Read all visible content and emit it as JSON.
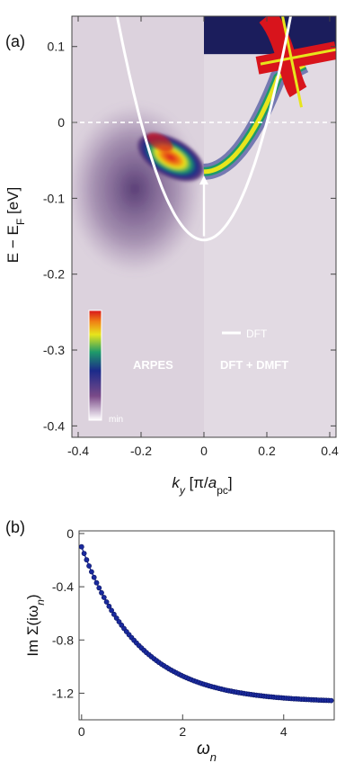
{
  "panel_a": {
    "label": "(a)",
    "region_left_label": "ARPES",
    "region_right_label": "DFT + DMFT",
    "legend_dft_label": "DFT",
    "colorbar_min_label": "min",
    "ylabel_main": "E − E",
    "ylabel_sub": "F",
    "ylabel_unit": " [eV]",
    "xlabel_k": "k",
    "xlabel_y": "y",
    "xlabel_mid": " [π/",
    "xlabel_a": "a",
    "xlabel_pc": "pc",
    "xlabel_end": "]",
    "colors": {
      "background": "#dcd2dd",
      "dft_curve": "#ffffff",
      "fermi_line": "#ffffff"
    }
  },
  "panel_b": {
    "label": "(b)",
    "ylabel_main": "Im Σ(iω",
    "ylabel_sub": "n",
    "ylabel_end": ")",
    "xlabel_main": "ω",
    "xlabel_sub": "n",
    "colors": {
      "marker": "#1a2a9e",
      "line": "#1a2a9e"
    }
  },
  "chart_data": [
    {
      "type": "heatmap",
      "x_axis": {
        "range": [
          -0.42,
          0.42
        ],
        "ticks": [
          -0.4,
          -0.2,
          0,
          0.2,
          0.4
        ],
        "tick_labels": [
          "-0.4",
          "-0.2",
          "0",
          "0.2",
          "0.4"
        ]
      },
      "y_axis": {
        "range": [
          -0.415,
          0.14
        ],
        "ticks": [
          0.1,
          0,
          -0.1,
          -0.2,
          -0.3,
          -0.4
        ],
        "tick_labels": [
          "0.1",
          "0",
          "-0.1",
          "-0.2",
          "-0.3",
          "-0.4"
        ]
      },
      "fermi_level": 0,
      "dft_band": {
        "k_min": 0,
        "energy_min": -0.155,
        "k_at_fermi": 0.2
      },
      "arrow": {
        "k": 0,
        "from_energy": -0.15,
        "to_energy": -0.07
      },
      "regions": [
        {
          "name": "ARPES",
          "k_range": [
            -0.42,
            0
          ]
        },
        {
          "name": "DFT + DMFT",
          "k_range": [
            0,
            0.42
          ]
        }
      ]
    },
    {
      "type": "scatter",
      "x_axis": {
        "range": [
          -0.05,
          5.0
        ],
        "ticks": [
          0,
          2,
          4
        ],
        "tick_labels": [
          "0",
          "2",
          "4"
        ]
      },
      "y_axis": {
        "range": [
          -1.4,
          0.02
        ],
        "ticks": [
          0,
          -0.4,
          -0.8,
          -1.2
        ],
        "tick_labels": [
          "0",
          "-0.4",
          "-0.8",
          "-1.2"
        ]
      },
      "model": {
        "a": 1.17,
        "b": 0.1,
        "tau": 1.13,
        "floor": -1.265
      },
      "n_points": 101,
      "x_start": 0.0,
      "x_end": 4.94
    }
  ]
}
